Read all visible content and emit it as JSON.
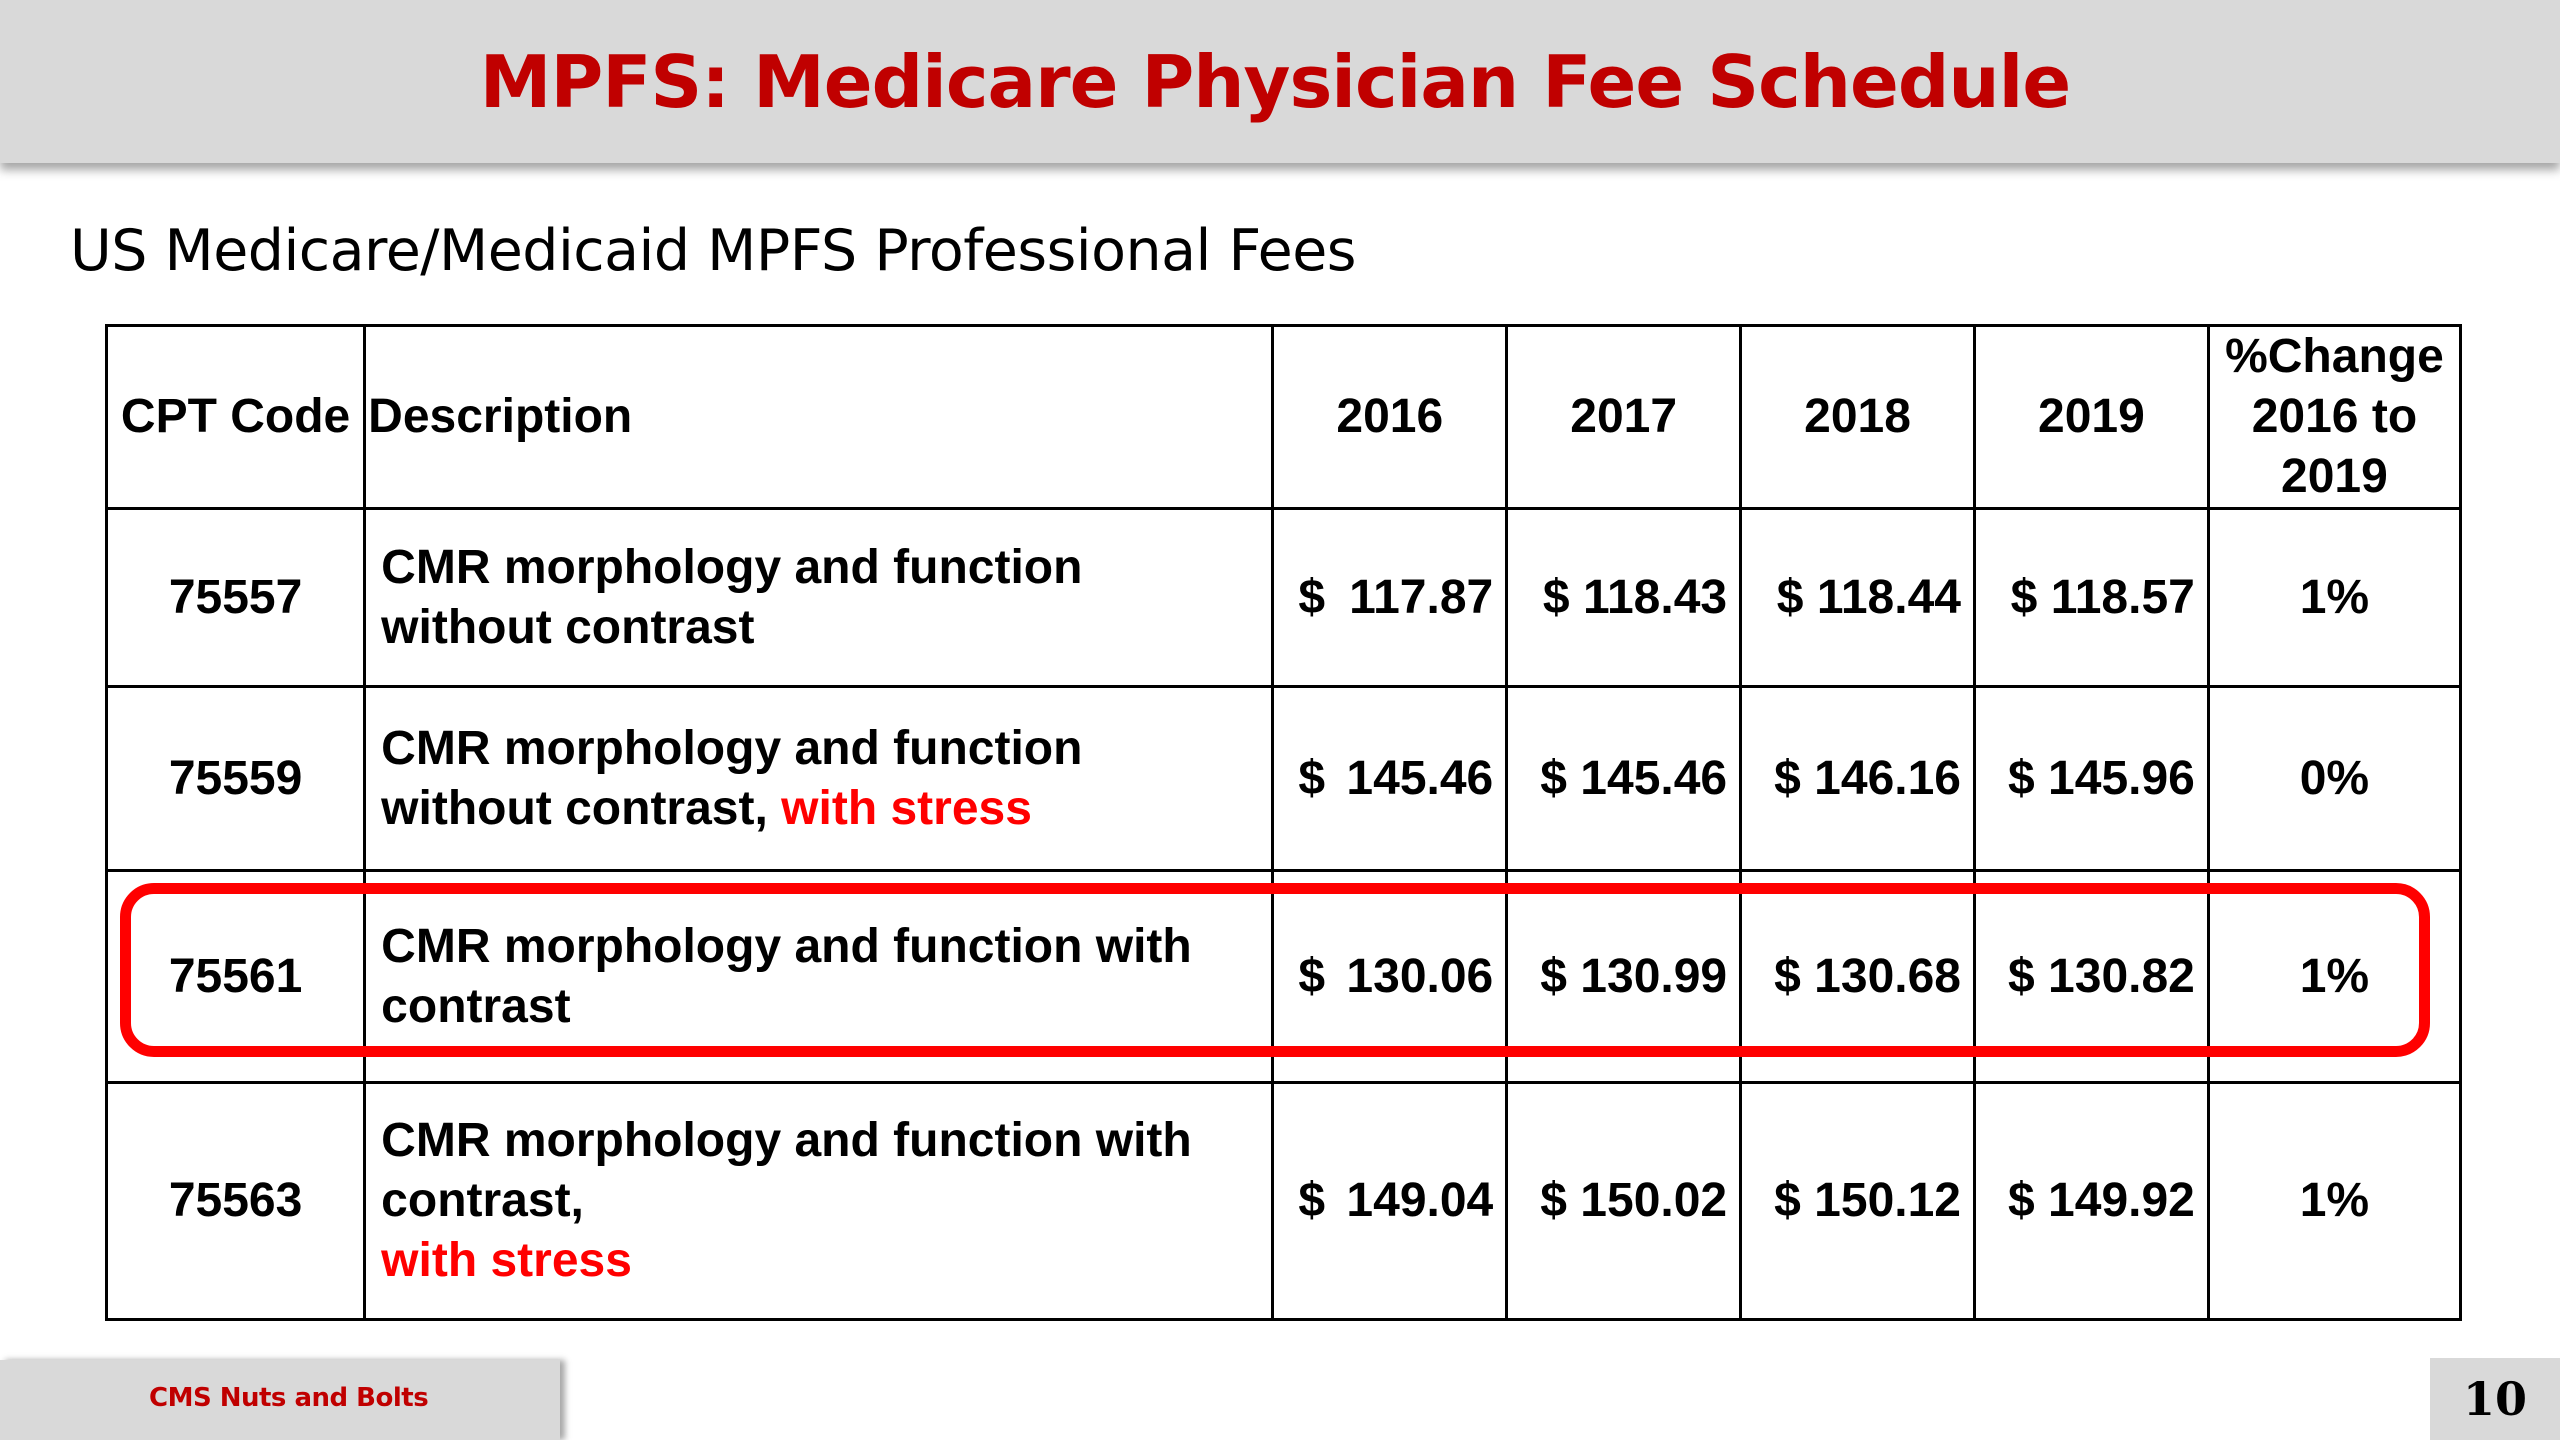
{
  "slide": {
    "title": "MPFS: Medicare Physician Fee Schedule",
    "subtitle": "US Medicare/Medicaid MPFS Professional Fees",
    "footer": "CMS Nuts and Bolts",
    "page_number": "10"
  },
  "table": {
    "headers": {
      "code": "CPT Code",
      "description": "Description",
      "y2016": "2016",
      "y2017": "2017",
      "y2018": "2018",
      "y2019": "2019",
      "change_line1": "%Change",
      "change_line2": "2016 to",
      "change_line3": "2019"
    },
    "currency_symbol": "$",
    "rows": [
      {
        "code": "75557",
        "desc_line1": "CMR morphology and function",
        "desc_line2": "without contrast",
        "fee_2016": "117.87",
        "fee_2017": "118.43",
        "fee_2018": "118.44",
        "fee_2019": "118.57",
        "change": "1%"
      },
      {
        "code": "75559",
        "desc_line1": "CMR morphology and function",
        "desc_line2": "without contrast,",
        "desc_highlight": "with stress",
        "fee_2016": "145.46",
        "fee_2017": "145.46",
        "fee_2018": "146.16",
        "fee_2019": "145.96",
        "change": "0%"
      },
      {
        "code": "75561",
        "desc_line1": "CMR morphology and function with",
        "desc_line2": "contrast",
        "fee_2016": "130.06",
        "fee_2017": "130.99",
        "fee_2018": "130.68",
        "fee_2019": "130.82",
        "change": "1%",
        "highlighted": true
      },
      {
        "code": "75563",
        "desc_line1": "CMR morphology and function with",
        "desc_line2": "contrast,",
        "desc_highlight": "with stress",
        "fee_2016": "149.04",
        "fee_2017": "150.02",
        "fee_2018": "150.12",
        "fee_2019": "149.92",
        "change": "1%"
      }
    ]
  },
  "colors": {
    "title": "#c00000",
    "highlight": "#ff0000",
    "bar_background": "#d9d9d9"
  }
}
